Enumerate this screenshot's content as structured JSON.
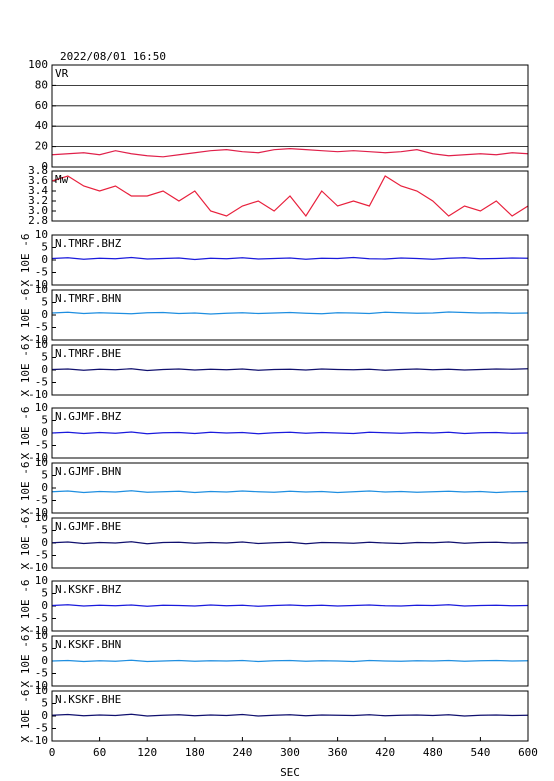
{
  "chart_data": [
    {
      "type": "line",
      "title": "2022/08/01 16:50",
      "label": "VR",
      "color": "#e0204a",
      "grid": true,
      "x": [
        0,
        20,
        40,
        60,
        80,
        100,
        120,
        140,
        160,
        180,
        200,
        220,
        240,
        260,
        280,
        300,
        320,
        340,
        360,
        380,
        400,
        420,
        440,
        460,
        480,
        500,
        520,
        540,
        560,
        580,
        600
      ],
      "values": [
        12,
        13,
        14,
        12,
        16,
        13,
        11,
        10,
        12,
        14,
        16,
        17,
        15,
        14,
        17,
        18,
        17,
        16,
        15,
        16,
        15,
        14,
        15,
        17,
        13,
        11,
        12,
        13,
        12,
        14,
        13
      ],
      "xlim": [
        0,
        600
      ],
      "ylim": [
        0,
        100
      ],
      "yticks": [
        0,
        20,
        40,
        60,
        80,
        100
      ]
    },
    {
      "type": "line",
      "label": "Mw",
      "color": "#e8203c",
      "grid": false,
      "x": [
        0,
        20,
        40,
        60,
        80,
        100,
        120,
        140,
        160,
        180,
        200,
        220,
        240,
        260,
        280,
        300,
        320,
        340,
        360,
        380,
        400,
        420,
        440,
        460,
        480,
        500,
        520,
        540,
        560,
        580,
        600
      ],
      "values": [
        3.6,
        3.7,
        3.5,
        3.4,
        3.5,
        3.3,
        3.3,
        3.4,
        3.2,
        3.4,
        3.0,
        2.9,
        3.1,
        3.2,
        3.0,
        3.3,
        2.9,
        3.4,
        3.1,
        3.2,
        3.1,
        3.7,
        3.5,
        3.4,
        3.2,
        2.9,
        3.1,
        3.0,
        3.2,
        2.9,
        3.1
      ],
      "xlim": [
        0,
        600
      ],
      "ylim": [
        2.8,
        3.8
      ],
      "yticks": [
        2.8,
        {
          "value": 3,
          "label": "3.0"
        },
        3.2,
        3.4,
        3.6,
        3.8
      ]
    },
    {
      "type": "line",
      "label": "N.TMRF.BHZ",
      "ylabel": "X 10E -6",
      "color": "#1a1adc",
      "grid": false,
      "x": [
        0,
        20,
        40,
        60,
        80,
        100,
        120,
        140,
        160,
        180,
        200,
        220,
        240,
        260,
        280,
        300,
        320,
        340,
        360,
        380,
        400,
        420,
        440,
        460,
        480,
        500,
        520,
        540,
        560,
        580,
        600
      ],
      "values": [
        0.6,
        0.9,
        0.3,
        0.7,
        0.5,
        1.0,
        0.4,
        0.6,
        0.8,
        0.2,
        0.7,
        0.5,
        0.9,
        0.4,
        0.6,
        0.8,
        0.3,
        0.7,
        0.6,
        1.0,
        0.5,
        0.4,
        0.8,
        0.6,
        0.3,
        0.7,
        0.9,
        0.5,
        0.6,
        0.8,
        0.7
      ],
      "xlim": [
        0,
        600
      ],
      "ylim": [
        -10,
        10
      ],
      "yticks": [
        -10,
        -5,
        0,
        5,
        10
      ]
    },
    {
      "type": "line",
      "label": "N.TMRF.BHN",
      "ylabel": "X 10E -6",
      "color": "#1e8ee0",
      "grid": false,
      "x": [
        0,
        20,
        40,
        60,
        80,
        100,
        120,
        140,
        160,
        180,
        200,
        220,
        240,
        260,
        280,
        300,
        320,
        340,
        360,
        380,
        400,
        420,
        440,
        460,
        480,
        500,
        520,
        540,
        560,
        580,
        600
      ],
      "values": [
        0.8,
        1.1,
        0.6,
        0.9,
        0.7,
        0.5,
        0.9,
        1.0,
        0.6,
        0.8,
        0.4,
        0.7,
        0.9,
        0.6,
        0.8,
        1.0,
        0.7,
        0.5,
        0.9,
        0.8,
        0.6,
        1.1,
        0.9,
        0.7,
        0.8,
        1.2,
        1.0,
        0.8,
        0.9,
        0.7,
        0.8
      ],
      "xlim": [
        0,
        600
      ],
      "ylim": [
        -10,
        10
      ],
      "yticks": [
        -10,
        -5,
        0,
        5,
        10
      ]
    },
    {
      "type": "line",
      "label": "N.TMRF.BHE",
      "ylabel": "X 10E -6",
      "color": "#10106e",
      "grid": false,
      "x": [
        0,
        20,
        40,
        60,
        80,
        100,
        120,
        140,
        160,
        180,
        200,
        220,
        240,
        260,
        280,
        300,
        320,
        340,
        360,
        380,
        400,
        420,
        440,
        460,
        480,
        500,
        520,
        540,
        560,
        580,
        600
      ],
      "values": [
        0.2,
        0.4,
        -0.1,
        0.3,
        0.1,
        0.5,
        -0.2,
        0.2,
        0.4,
        0.0,
        0.3,
        0.1,
        0.4,
        -0.1,
        0.2,
        0.3,
        0.0,
        0.4,
        0.2,
        0.1,
        0.3,
        -0.1,
        0.2,
        0.4,
        0.1,
        0.3,
        0.0,
        0.2,
        0.4,
        0.3,
        0.5
      ],
      "xlim": [
        0,
        600
      ],
      "ylim": [
        -10,
        10
      ],
      "yticks": [
        -10,
        -5,
        0,
        5,
        10
      ]
    },
    {
      "type": "line",
      "label": "N.GJMF.BHZ",
      "ylabel": "X 10E -6",
      "color": "#1a1adc",
      "grid": false,
      "x": [
        0,
        20,
        40,
        60,
        80,
        100,
        120,
        140,
        160,
        180,
        200,
        220,
        240,
        260,
        280,
        300,
        320,
        340,
        360,
        380,
        400,
        420,
        440,
        460,
        480,
        500,
        520,
        540,
        560,
        580,
        600
      ],
      "values": [
        0.0,
        0.3,
        -0.2,
        0.2,
        -0.1,
        0.4,
        -0.3,
        0.1,
        0.2,
        -0.2,
        0.3,
        0.0,
        0.2,
        -0.3,
        0.1,
        0.3,
        -0.1,
        0.2,
        0.0,
        -0.2,
        0.3,
        0.1,
        -0.1,
        0.2,
        0.0,
        0.3,
        -0.2,
        0.1,
        0.2,
        -0.1,
        0.0
      ],
      "xlim": [
        0,
        600
      ],
      "ylim": [
        -10,
        10
      ],
      "yticks": [
        -10,
        -5,
        0,
        5,
        10
      ]
    },
    {
      "type": "line",
      "label": "N.GJMF.BHN",
      "ylabel": "X 10E -6",
      "color": "#1e8ee0",
      "grid": false,
      "x": [
        0,
        20,
        40,
        60,
        80,
        100,
        120,
        140,
        160,
        180,
        200,
        220,
        240,
        260,
        280,
        300,
        320,
        340,
        360,
        380,
        400,
        420,
        440,
        460,
        480,
        500,
        520,
        540,
        560,
        580,
        600
      ],
      "values": [
        -1.5,
        -1.2,
        -1.8,
        -1.4,
        -1.6,
        -1.1,
        -1.7,
        -1.5,
        -1.3,
        -1.8,
        -1.4,
        -1.6,
        -1.2,
        -1.5,
        -1.7,
        -1.3,
        -1.6,
        -1.4,
        -1.8,
        -1.5,
        -1.2,
        -1.6,
        -1.4,
        -1.7,
        -1.5,
        -1.3,
        -1.6,
        -1.4,
        -1.8,
        -1.5,
        -1.4
      ],
      "xlim": [
        0,
        600
      ],
      "ylim": [
        -10,
        10
      ],
      "yticks": [
        -10,
        -5,
        0,
        5,
        10
      ]
    },
    {
      "type": "line",
      "label": "N.GJMF.BHE",
      "ylabel": "X 10E -6",
      "color": "#10106e",
      "grid": false,
      "x": [
        0,
        20,
        40,
        60,
        80,
        100,
        120,
        140,
        160,
        180,
        200,
        220,
        240,
        260,
        280,
        300,
        320,
        340,
        360,
        380,
        400,
        420,
        440,
        460,
        480,
        500,
        520,
        540,
        560,
        580,
        600
      ],
      "values": [
        0.1,
        0.4,
        -0.2,
        0.2,
        0.0,
        0.5,
        -0.3,
        0.2,
        0.3,
        -0.1,
        0.2,
        0.0,
        0.4,
        -0.2,
        0.1,
        0.3,
        -0.3,
        0.2,
        0.1,
        -0.1,
        0.3,
        0.0,
        -0.2,
        0.2,
        0.1,
        0.4,
        -0.1,
        0.2,
        0.3,
        0.0,
        0.1
      ],
      "xlim": [
        0,
        600
      ],
      "ylim": [
        -10,
        10
      ],
      "yticks": [
        -10,
        -5,
        0,
        5,
        10
      ]
    },
    {
      "type": "line",
      "label": "N.KSKF.BHZ",
      "ylabel": "X 10E -6",
      "color": "#1a1adc",
      "grid": false,
      "x": [
        0,
        20,
        40,
        60,
        80,
        100,
        120,
        140,
        160,
        180,
        200,
        220,
        240,
        260,
        280,
        300,
        320,
        340,
        360,
        380,
        400,
        420,
        440,
        460,
        480,
        500,
        520,
        540,
        560,
        580,
        600
      ],
      "values": [
        0.2,
        0.5,
        0.0,
        0.3,
        0.1,
        0.4,
        -0.1,
        0.3,
        0.2,
        0.0,
        0.4,
        0.1,
        0.3,
        -0.1,
        0.2,
        0.4,
        0.1,
        0.3,
        0.0,
        0.2,
        0.4,
        0.1,
        0.0,
        0.3,
        0.2,
        0.5,
        0.0,
        0.2,
        0.3,
        0.1,
        0.2
      ],
      "xlim": [
        0,
        600
      ],
      "ylim": [
        -10,
        10
      ],
      "yticks": [
        -10,
        -5,
        0,
        5,
        10
      ]
    },
    {
      "type": "line",
      "label": "N.KSKF.BHN",
      "ylabel": "X 10E -6",
      "color": "#1e8ee0",
      "grid": false,
      "x": [
        0,
        20,
        40,
        60,
        80,
        100,
        120,
        140,
        160,
        180,
        200,
        220,
        240,
        260,
        280,
        300,
        320,
        340,
        360,
        380,
        400,
        420,
        440,
        460,
        480,
        500,
        520,
        540,
        560,
        580,
        600
      ],
      "values": [
        0.0,
        0.2,
        -0.2,
        0.1,
        -0.1,
        0.3,
        -0.2,
        0.0,
        0.2,
        -0.1,
        0.1,
        0.0,
        0.2,
        -0.2,
        0.1,
        0.2,
        -0.1,
        0.1,
        0.0,
        -0.2,
        0.2,
        0.0,
        -0.1,
        0.1,
        0.0,
        0.2,
        -0.1,
        0.1,
        0.2,
        0.0,
        0.1
      ],
      "xlim": [
        0,
        600
      ],
      "ylim": [
        -10,
        10
      ],
      "yticks": [
        -10,
        -5,
        0,
        5,
        10
      ]
    },
    {
      "type": "line",
      "label": "N.KSKF.BHE",
      "ylabel": "X 10E -6",
      "color": "#10106e",
      "grid": false,
      "x": [
        0,
        20,
        40,
        60,
        80,
        100,
        120,
        140,
        160,
        180,
        200,
        220,
        240,
        260,
        280,
        300,
        320,
        340,
        360,
        380,
        400,
        420,
        440,
        460,
        480,
        500,
        520,
        540,
        560,
        580,
        600
      ],
      "values": [
        0.3,
        0.6,
        0.1,
        0.4,
        0.2,
        0.7,
        0.0,
        0.3,
        0.5,
        0.1,
        0.4,
        0.2,
        0.6,
        0.0,
        0.3,
        0.5,
        0.1,
        0.4,
        0.3,
        0.2,
        0.5,
        0.1,
        0.3,
        0.4,
        0.2,
        0.5,
        0.0,
        0.3,
        0.4,
        0.2,
        0.3
      ],
      "xlim": [
        0,
        600
      ],
      "ylim": [
        -10,
        10
      ],
      "yticks": [
        -10,
        -5,
        0,
        5,
        10
      ],
      "xticks": [
        0,
        60,
        120,
        180,
        240,
        300,
        360,
        420,
        480,
        540,
        600
      ],
      "xlabel": "SEC"
    }
  ]
}
